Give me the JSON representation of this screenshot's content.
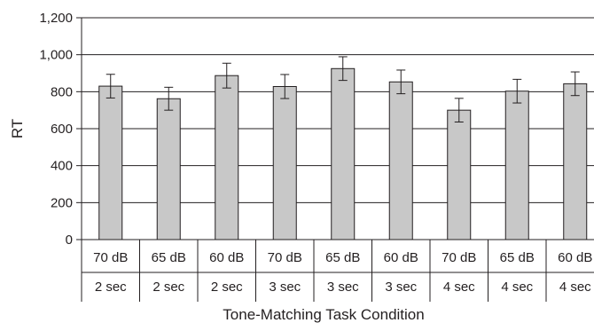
{
  "chart_data": {
    "type": "bar",
    "title": "",
    "xlabel": "Tone-Matching Task Condition",
    "ylabel": "RT",
    "ylim": [
      0,
      1200
    ],
    "yticks": [
      "0",
      "200",
      "400",
      "600",
      "800",
      "1,000",
      "1,200"
    ],
    "ytick_values": [
      0,
      200,
      400,
      600,
      800,
      1000,
      1200
    ],
    "grid": true,
    "legend": "none",
    "categories": [
      {
        "level": "70 dB",
        "duration": "2 sec"
      },
      {
        "level": "65 dB",
        "duration": "2 sec"
      },
      {
        "level": "60 dB",
        "duration": "2 sec"
      },
      {
        "level": "70 dB",
        "duration": "3 sec"
      },
      {
        "level": "65 dB",
        "duration": "3 sec"
      },
      {
        "level": "60 dB",
        "duration": "3 sec"
      },
      {
        "level": "70 dB",
        "duration": "4 sec"
      },
      {
        "level": "65 dB",
        "duration": "4 sec"
      },
      {
        "level": "60 dB",
        "duration": "4 sec"
      }
    ],
    "values": [
      830,
      762,
      887,
      828,
      925,
      853,
      700,
      803,
      843
    ],
    "error": [
      64,
      62,
      67,
      65,
      64,
      64,
      64,
      64,
      64
    ],
    "colors": {
      "bar_fill": "#c8c8c8",
      "bar_stroke": "#231f20",
      "grid": "#231f20",
      "axis": "#231f20"
    }
  }
}
